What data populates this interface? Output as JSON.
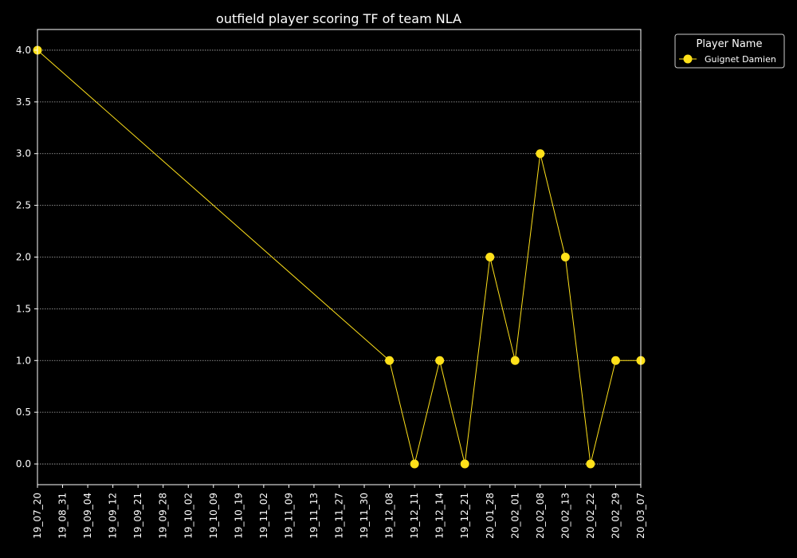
{
  "chart_data": {
    "type": "line",
    "title": "outfield player scoring TF of team NLA",
    "xlabel": "",
    "ylabel": "",
    "categories": [
      "19_07_20",
      "19_08_31",
      "19_09_04",
      "19_09_12",
      "19_09_21",
      "19_09_28",
      "19_10_02",
      "19_10_09",
      "19_10_19",
      "19_11_02",
      "19_11_09",
      "19_11_13",
      "19_11_27",
      "19_11_30",
      "19_12_08",
      "19_12_11",
      "19_12_14",
      "19_12_21",
      "20_01_28",
      "20_02_01",
      "20_02_08",
      "20_02_13",
      "20_02_22",
      "20_02_29",
      "20_03_07"
    ],
    "ylim": [
      -0.2,
      4.2
    ],
    "yticks": [
      "0.0",
      "0.5",
      "1.0",
      "1.5",
      "2.0",
      "2.5",
      "3.0",
      "3.5",
      "4.0"
    ],
    "grid": true,
    "legend": {
      "title": "Player Name",
      "placement": "outside-top-right"
    },
    "series": [
      {
        "name": "Guignet Damien",
        "color": "#ffe11a",
        "points": [
          {
            "x": "19_07_20",
            "y": 4
          },
          {
            "x": "19_12_08",
            "y": 1
          },
          {
            "x": "19_12_11",
            "y": 0
          },
          {
            "x": "19_12_14",
            "y": 1
          },
          {
            "x": "19_12_21",
            "y": 0
          },
          {
            "x": "20_01_28",
            "y": 2
          },
          {
            "x": "20_02_01",
            "y": 1
          },
          {
            "x": "20_02_08",
            "y": 3
          },
          {
            "x": "20_02_13",
            "y": 2
          },
          {
            "x": "20_02_22",
            "y": 0
          },
          {
            "x": "20_02_29",
            "y": 1
          },
          {
            "x": "20_03_07",
            "y": 1
          }
        ]
      }
    ]
  }
}
